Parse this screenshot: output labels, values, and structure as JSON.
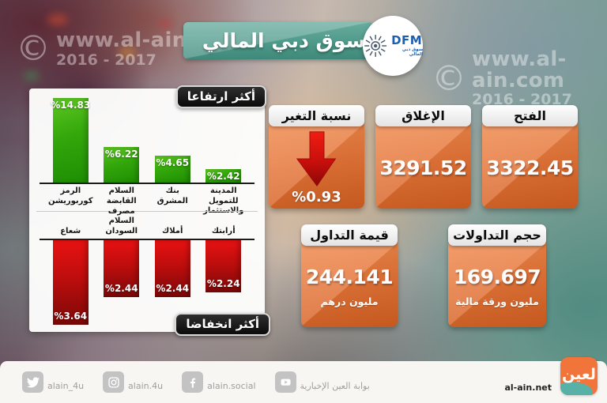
{
  "header": {
    "title": "سوق دبي المالي",
    "logo": {
      "text": "DFM",
      "subtext": "سوق دبي المالي"
    }
  },
  "watermarks": {
    "left": {
      "symbol": "©",
      "line1": "www.al-ain.com",
      "line2": "2016 - 2017"
    },
    "right": {
      "symbol": "©",
      "line1": "www.al-ain.com",
      "line2": "2016 - 2017"
    }
  },
  "chart_data": [
    {
      "type": "bar",
      "title": "أكثر ارتفاعا",
      "direction": "up",
      "unit": "%",
      "categories": [
        "الرمز كوربوريشن",
        "السلام القابضة",
        "بنك المشرق",
        "المدينة للتمويل والاستثمار"
      ],
      "category_display": [
        "الرمز\nكوربوريشن",
        "السلام القابضة",
        "بنك المشرق",
        "المدينة للتمويل\nوالاستثمار"
      ],
      "values": [
        14.83,
        6.22,
        4.65,
        2.42
      ],
      "labels": [
        "%14.83",
        "%6.22",
        "%4.65",
        "%2.42"
      ],
      "bar_color": "#2fa007",
      "ylim": [
        0,
        14.83
      ],
      "grid": false,
      "legend": false
    },
    {
      "type": "bar",
      "title": "أكثر انخفاضا",
      "direction": "down",
      "unit": "%",
      "categories": [
        "شعاع",
        "مصرف السلام السودان",
        "أملاك",
        "أرابتك"
      ],
      "category_display": [
        "شعاع",
        "مصرف السلام\nالسودان",
        "أملاك",
        "أرابتك"
      ],
      "values": [
        3.64,
        2.44,
        2.44,
        2.24
      ],
      "labels": [
        "%3.64",
        "%2.44",
        "%2.44",
        "%2.24"
      ],
      "bar_color": "#c41111",
      "ylim": [
        0,
        3.64
      ],
      "grid": false,
      "legend": false
    }
  ],
  "stats": {
    "open": {
      "label": "الفتح",
      "value": "3322.45"
    },
    "close": {
      "label": "الإغلاق",
      "value": "3291.52"
    },
    "change": {
      "label": "نسبة التغير",
      "value": "%0.93",
      "direction": "down"
    },
    "value": {
      "label": "قيمة التداول",
      "value": "244.141",
      "unit": "مليون درهم"
    },
    "volume": {
      "label": "حجم التداولات",
      "value": "169.697",
      "unit": "مليون ورقة مالية"
    }
  },
  "footer": {
    "social": [
      {
        "icon": "twitter-icon",
        "handle": "alain_4u"
      },
      {
        "icon": "instagram-icon",
        "handle": "alain.4u"
      },
      {
        "icon": "facebook-icon",
        "handle": "alain.social"
      },
      {
        "icon": "youtube-icon",
        "handle": "بوابة العين الإخبارية"
      }
    ],
    "site": "al-ain.net",
    "logo_text": "لعين"
  },
  "colors": {
    "accent_orange": "#E4763C",
    "teal_banner": "#4F9A8B",
    "gain_green": "#2FA007",
    "loss_red": "#C41111",
    "badge_dark": "#141414"
  }
}
